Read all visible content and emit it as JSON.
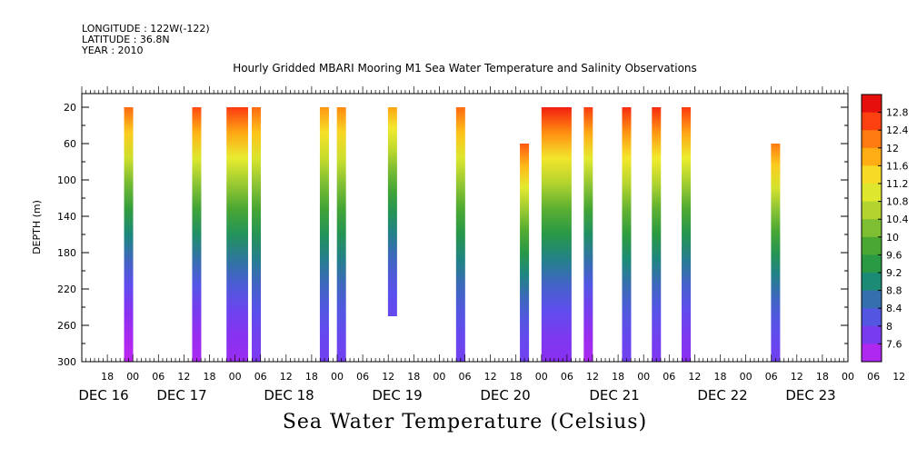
{
  "header": {
    "longitude": "LONGITUDE : 122W(-122)",
    "latitude": "LATITUDE : 36.8N",
    "year": "YEAR : 2010"
  },
  "chart_data": {
    "type": "heatmap",
    "title": "Hourly Gridded MBARI Mooring M1 Sea Water Temperature and Salinity Observations",
    "colorbar_label": "Sea Water Temperature (Celsius)",
    "ylabel": "DEPTH (m)",
    "ylim": [
      300,
      5
    ],
    "y_ticks": [
      20,
      60,
      100,
      140,
      180,
      220,
      260,
      300
    ],
    "x_hour_ticks": [
      "18",
      "00",
      "06",
      "12",
      "18",
      "00",
      "06",
      "12",
      "18",
      "00",
      "06",
      "12",
      "18",
      "00",
      "06",
      "12",
      "18",
      "00",
      "06",
      "12",
      "18",
      "00",
      "06",
      "12",
      "18",
      "00",
      "06",
      "12",
      "18",
      "00",
      "06",
      "12"
    ],
    "x_date_labels": [
      "DEC 16",
      "DEC 17",
      "DEC 18",
      "DEC 19",
      "DEC 20",
      "DEC 21",
      "DEC 22",
      "DEC 23"
    ],
    "colorbar_ticks": [
      "12.8",
      "12.4",
      "12",
      "11.6",
      "11.2",
      "10.8",
      "10.4",
      "10",
      "9.6",
      "9.2",
      "8.8",
      "8.4",
      "8",
      "7.6"
    ],
    "colorbar_range": [
      7.6,
      13.0
    ],
    "profiles": [
      {
        "time": "DEC 16 23:00",
        "depth_top": 20,
        "depth_bottom": 300,
        "surface_temp": 12.2,
        "bottom_temp": 7.7
      },
      {
        "time": "DEC 17 15:00",
        "depth_top": 20,
        "depth_bottom": 300,
        "surface_temp": 12.4,
        "bottom_temp": 7.8
      },
      {
        "time": "DEC 17 22:00 - DEC 18 02:00",
        "depth_top": 20,
        "depth_bottom": 300,
        "surface_temp": 12.5,
        "bottom_temp": 7.9
      },
      {
        "time": "DEC 18 05:00",
        "depth_top": 20,
        "depth_bottom": 300,
        "surface_temp": 12.2,
        "bottom_temp": 8.1
      },
      {
        "time": "DEC 18 21:00",
        "depth_top": 20,
        "depth_bottom": 300,
        "surface_temp": 11.9,
        "bottom_temp": 8.2
      },
      {
        "time": "DEC 19 01:00",
        "depth_top": 20,
        "depth_bottom": 300,
        "surface_temp": 12.0,
        "bottom_temp": 8.2
      },
      {
        "time": "DEC 19 13:00",
        "depth_top": 20,
        "depth_bottom": 250,
        "surface_temp": 11.8,
        "bottom_temp": 8.3
      },
      {
        "time": "DEC 20 05:00",
        "depth_top": 20,
        "depth_bottom": 300,
        "surface_temp": 12.2,
        "bottom_temp": 8.2
      },
      {
        "time": "DEC 20 20:00",
        "depth_top": 60,
        "depth_bottom": 300,
        "surface_temp": 12.3,
        "bottom_temp": 8.2
      },
      {
        "time": "DEC 21 00:00 - DEC 21 06:00",
        "depth_top": 20,
        "depth_bottom": 300,
        "surface_temp": 12.7,
        "bottom_temp": 8.0
      },
      {
        "time": "DEC 21 11:00",
        "depth_top": 20,
        "depth_bottom": 300,
        "surface_temp": 12.5,
        "bottom_temp": 7.8
      },
      {
        "time": "DEC 21 20:00",
        "depth_top": 20,
        "depth_bottom": 300,
        "surface_temp": 12.6,
        "bottom_temp": 8.2
      },
      {
        "time": "DEC 22 03:00",
        "depth_top": 20,
        "depth_bottom": 300,
        "surface_temp": 12.6,
        "bottom_temp": 8.1
      },
      {
        "time": "DEC 22 10:00",
        "depth_top": 20,
        "depth_bottom": 300,
        "surface_temp": 12.5,
        "bottom_temp": 8.0
      },
      {
        "time": "DEC 23 07:00",
        "depth_top": 60,
        "depth_bottom": 300,
        "surface_temp": 12.1,
        "bottom_temp": 8.2
      }
    ]
  }
}
